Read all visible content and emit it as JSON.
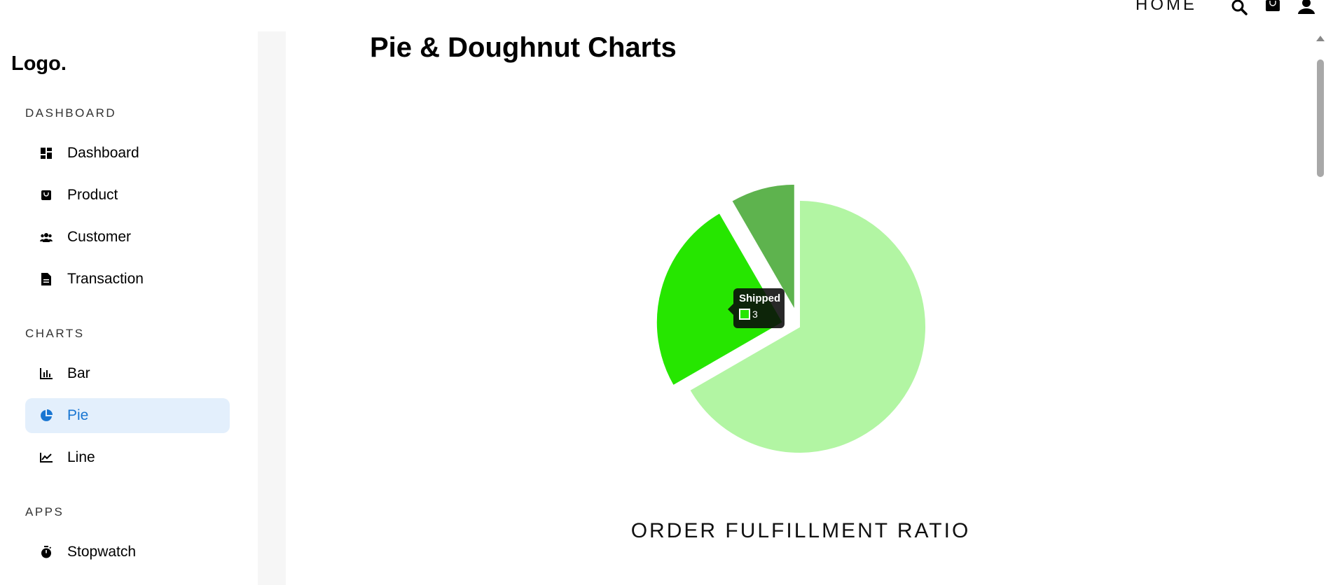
{
  "header": {
    "home_label": "HOME",
    "icons": [
      "search-icon",
      "shopping-bag-icon",
      "user-icon"
    ]
  },
  "sidebar": {
    "logo": "Logo.",
    "sections": [
      {
        "label": "DASHBOARD",
        "items": [
          {
            "label": "Dashboard",
            "icon": "dashboard-icon"
          },
          {
            "label": "Product",
            "icon": "shopping-bag-icon"
          },
          {
            "label": "Customer",
            "icon": "people-icon"
          },
          {
            "label": "Transaction",
            "icon": "document-icon"
          }
        ]
      },
      {
        "label": "CHARTS",
        "items": [
          {
            "label": "Bar",
            "icon": "bar-chart-icon"
          },
          {
            "label": "Pie",
            "icon": "pie-chart-icon",
            "active": true
          },
          {
            "label": "Line",
            "icon": "line-chart-icon"
          }
        ]
      },
      {
        "label": "APPS",
        "items": [
          {
            "label": "Stopwatch",
            "icon": "stopwatch-icon"
          }
        ]
      }
    ],
    "active_color": "#1976d2",
    "active_bg": "#e3effc"
  },
  "main": {
    "title": "Pie & Doughnut Charts"
  },
  "chart_data": {
    "type": "pie",
    "title": "ORDER FULFILLMENT RATIO",
    "slices": [
      {
        "name": "",
        "value": 8,
        "color": "#b2f5a3"
      },
      {
        "name": "Shipped",
        "value": 3,
        "color": "#26e600",
        "offset": true
      },
      {
        "name": "",
        "value": 1,
        "color": "#5eb34e",
        "offset": true
      }
    ],
    "tooltip": {
      "title": "Shipped",
      "value": "3",
      "color": "#26e600"
    }
  }
}
